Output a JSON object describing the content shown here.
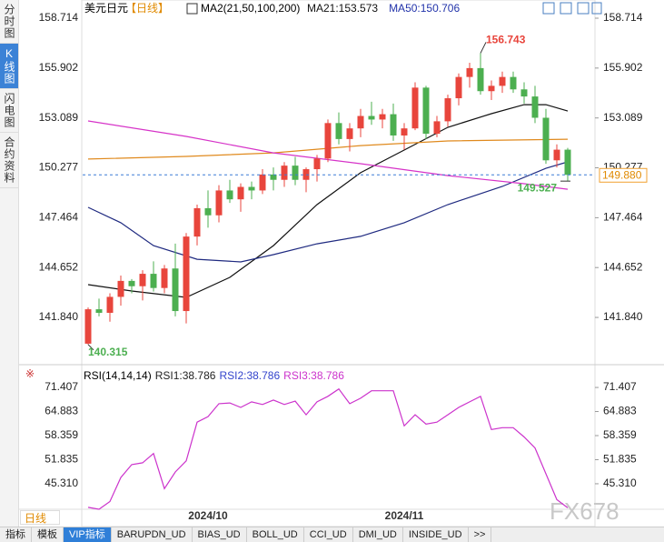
{
  "sidebar_tabs": [
    "分时图",
    "K线图",
    "闪电图",
    "合约资料"
  ],
  "sidebar_selected": 1,
  "period_selector": "日线",
  "toolbar": [
    "指标",
    "模板",
    "VIP指标",
    "BARUPDN_UD",
    "BIAS_UD",
    "BOLL_UD",
    "CCI_UD",
    "DMI_UD",
    "INSIDE_UD",
    ">>"
  ],
  "toolbar_selected": 2,
  "watermark": "FX678",
  "chart_data": [
    {
      "type": "candlestick",
      "symbol": "美元日元",
      "period": "【日线】",
      "indicator": "MA2(21,50,100,200)",
      "ma_labels": [
        {
          "label": "MA21:153.573",
          "color": "#111111"
        },
        {
          "label": "MA50:150.706",
          "color": "#2233aa"
        }
      ],
      "categories": [
        null,
        null,
        null,
        null,
        null,
        null,
        null,
        null,
        null,
        null,
        null,
        "2024/10",
        null,
        null,
        null,
        null,
        null,
        null,
        null,
        null,
        null,
        null,
        null,
        null,
        null,
        null,
        null,
        null,
        null,
        "2024/11",
        null,
        null,
        null,
        null,
        null,
        null,
        null,
        null,
        null,
        null,
        null,
        null,
        null,
        null,
        null
      ],
      "up_color": "#e8453c",
      "down_color": "#4caf50",
      "ohlc": [
        [
          140.36,
          142.4,
          140.315,
          142.3
        ],
        [
          142.3,
          142.9,
          141.9,
          142.1
        ],
        [
          142.1,
          143.2,
          141.6,
          143.0
        ],
        [
          143.0,
          144.2,
          142.5,
          143.9
        ],
        [
          143.9,
          144.0,
          143.2,
          143.6
        ],
        [
          143.6,
          144.5,
          142.8,
          144.3
        ],
        [
          144.3,
          145.0,
          143.3,
          143.5
        ],
        [
          143.5,
          144.8,
          143.2,
          144.6
        ],
        [
          144.6,
          146.0,
          141.9,
          142.2
        ],
        [
          142.2,
          146.6,
          141.5,
          146.4
        ],
        [
          146.4,
          148.2,
          145.9,
          148.0
        ],
        [
          148.0,
          149.0,
          146.9,
          147.6
        ],
        [
          147.6,
          149.3,
          147.2,
          149.0
        ],
        [
          149.0,
          149.6,
          148.3,
          148.5
        ],
        [
          148.5,
          149.4,
          147.8,
          149.2
        ],
        [
          149.2,
          149.5,
          148.5,
          149.0
        ],
        [
          149.0,
          150.2,
          148.8,
          149.9
        ],
        [
          149.9,
          150.3,
          149.0,
          149.6
        ],
        [
          149.6,
          150.6,
          149.2,
          150.4
        ],
        [
          150.4,
          150.9,
          149.3,
          149.6
        ],
        [
          149.6,
          150.3,
          148.9,
          150.2
        ],
        [
          150.2,
          151.0,
          149.5,
          150.8
        ],
        [
          150.8,
          153.0,
          150.6,
          152.8
        ],
        [
          152.8,
          153.4,
          151.6,
          151.9
        ],
        [
          151.9,
          152.8,
          151.2,
          152.5
        ],
        [
          152.5,
          153.6,
          152.0,
          153.2
        ],
        [
          153.2,
          154.0,
          152.7,
          153.0
        ],
        [
          153.0,
          153.6,
          152.5,
          153.3
        ],
        [
          153.3,
          153.9,
          151.8,
          152.1
        ],
        [
          152.1,
          152.8,
          151.3,
          152.5
        ],
        [
          152.5,
          155.1,
          152.4,
          154.8
        ],
        [
          154.8,
          154.9,
          151.9,
          152.2
        ],
        [
          152.2,
          153.2,
          152.0,
          152.9
        ],
        [
          152.9,
          154.4,
          152.6,
          154.2
        ],
        [
          154.2,
          155.6,
          153.8,
          155.4
        ],
        [
          155.4,
          156.2,
          154.8,
          155.9
        ],
        [
          155.9,
          156.743,
          154.4,
          154.6
        ],
        [
          154.6,
          155.2,
          154.1,
          154.9
        ],
        [
          154.9,
          155.7,
          154.5,
          155.4
        ],
        [
          155.4,
          155.7,
          154.5,
          154.7
        ],
        [
          154.7,
          155.1,
          153.9,
          154.3
        ],
        [
          154.3,
          154.9,
          152.8,
          153.1
        ],
        [
          153.1,
          153.6,
          150.5,
          150.7
        ],
        [
          150.7,
          151.6,
          150.3,
          151.3
        ],
        [
          151.3,
          151.4,
          149.527,
          149.88
        ]
      ],
      "overlays": [
        {
          "color": "#111111",
          "x": [
            0,
            4,
            9,
            13,
            17,
            21,
            25,
            29,
            33,
            37,
            40,
            42,
            44
          ],
          "values": [
            143.69,
            143.33,
            142.97,
            144.1,
            145.89,
            148.2,
            150.0,
            151.28,
            152.56,
            153.33,
            153.84,
            153.84,
            153.48
          ]
        },
        {
          "color": "#1f2a80",
          "x": [
            0,
            3,
            6,
            10,
            14,
            17,
            21,
            25,
            29,
            33,
            38,
            42,
            44
          ],
          "values": [
            148.05,
            147.18,
            145.89,
            145.12,
            144.97,
            145.38,
            145.99,
            146.41,
            147.18,
            148.2,
            149.23,
            150.25,
            150.61
          ]
        },
        {
          "color": "#e08a1e",
          "x": [
            0,
            9,
            17,
            25,
            33,
            44
          ],
          "values": [
            150.77,
            150.92,
            151.12,
            151.53,
            151.79,
            151.89
          ]
        },
        {
          "color": "#d633c8",
          "x": [
            0,
            9,
            17,
            25,
            33,
            40,
            44
          ],
          "values": [
            152.92,
            152.05,
            151.12,
            150.51,
            149.84,
            149.38,
            149.07
          ]
        }
      ],
      "last_price": {
        "value": 149.88,
        "label": "149.880"
      },
      "ylim": [
        139.33,
        159.33
      ],
      "yticks": [
        158.714,
        155.902,
        153.089,
        150.277,
        147.464,
        144.652,
        {
          "value": 141.84,
          "label": "141.840"
        }
      ]
    },
    {
      "type": "line",
      "title": "RSI(14,14,14)",
      "series": [
        {
          "name": "RSI1:38.786",
          "color": "#222222"
        },
        {
          "name": "RSI2:38.786",
          "color": "#3344cc"
        },
        {
          "name": "RSI3:38.786",
          "color": "#cc33cc",
          "values": [
            38.9,
            38.4,
            40.5,
            47.0,
            50.5,
            51.0,
            53.5,
            44.0,
            48.5,
            51.5,
            62.0,
            63.5,
            67.0,
            67.2,
            66.0,
            67.5,
            66.8,
            68.0,
            66.8,
            67.7,
            64.0,
            67.5,
            69.0,
            71.0,
            67.0,
            68.5,
            70.5,
            70.5,
            70.5,
            61.0,
            64.0,
            61.5,
            62.0,
            64.0,
            66.0,
            67.5,
            69.0,
            60.0,
            60.5,
            60.5,
            58.0,
            55.0,
            48.0,
            41.0,
            38.786
          ]
        }
      ],
      "ylim": [
        37.9,
        76.6
      ],
      "yticks": [
        71.407,
        64.883,
        58.359,
        51.835,
        {
          "value": 45.31,
          "label": "45.310"
        }
      ]
    }
  ]
}
